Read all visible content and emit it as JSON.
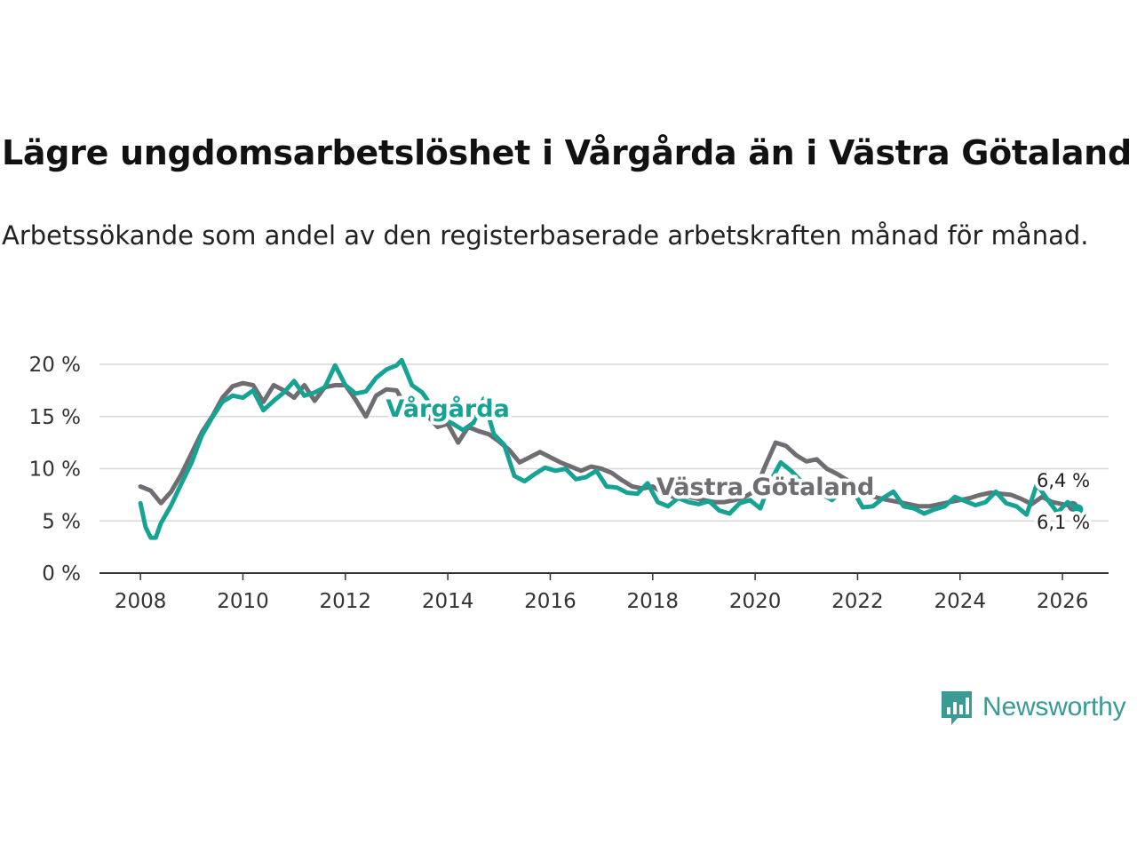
{
  "title": "Lägre ungdomsarbetslöshet i Vårgårda än i Västra Götaland",
  "subtitle": "Arbetssökande som andel av den registerbaserade arbetskraften månad för månad.",
  "brand": "Newsworthy",
  "colors": {
    "vargarda": "#16a394",
    "vastra_gotaland": "#6f6d72",
    "grid": "#d8d8d8",
    "axis": "#333333",
    "brand": "#3a9a94"
  },
  "chart_data": {
    "type": "line",
    "title": "Lägre ungdomsarbetslöshet i Vårgårda än i Västra Götaland",
    "xlabel": "",
    "ylabel": "",
    "xlim": [
      2007.2,
      2026.9
    ],
    "ylim": [
      0,
      20
    ],
    "yticks": [
      0,
      5,
      10,
      15,
      20
    ],
    "ytick_labels": [
      "0 %",
      "5 %",
      "10 %",
      "15 %",
      "20 %"
    ],
    "xticks": [
      2008,
      2010,
      2012,
      2014,
      2016,
      2018,
      2020,
      2022,
      2024,
      2026
    ],
    "xtick_labels": [
      "2008",
      "2010",
      "2012",
      "2014",
      "2016",
      "2018",
      "2020",
      "2022",
      "2024",
      "2026"
    ],
    "grid": true,
    "series": [
      {
        "name": "Västra Götaland",
        "label": "Västra Götaland",
        "end_label": "6,4 %",
        "color": "#6f6d72",
        "points": [
          [
            2008.0,
            8.3
          ],
          [
            2008.2,
            7.9
          ],
          [
            2008.4,
            6.7
          ],
          [
            2008.6,
            7.8
          ],
          [
            2008.8,
            9.5
          ],
          [
            2009.0,
            11.5
          ],
          [
            2009.2,
            13.5
          ],
          [
            2009.4,
            15.0
          ],
          [
            2009.6,
            16.8
          ],
          [
            2009.8,
            17.9
          ],
          [
            2010.0,
            18.2
          ],
          [
            2010.2,
            18.0
          ],
          [
            2010.4,
            16.4
          ],
          [
            2010.6,
            18.0
          ],
          [
            2010.8,
            17.5
          ],
          [
            2011.0,
            16.8
          ],
          [
            2011.2,
            18.0
          ],
          [
            2011.4,
            16.5
          ],
          [
            2011.6,
            17.8
          ],
          [
            2011.8,
            18.0
          ],
          [
            2012.0,
            18.0
          ],
          [
            2012.2,
            16.6
          ],
          [
            2012.4,
            15.0
          ],
          [
            2012.6,
            17.0
          ],
          [
            2012.8,
            17.6
          ],
          [
            2013.0,
            17.5
          ],
          [
            2013.2,
            15.8
          ],
          [
            2013.4,
            15.4
          ],
          [
            2013.6,
            15.1
          ],
          [
            2013.8,
            14.0
          ],
          [
            2014.0,
            14.3
          ],
          [
            2014.2,
            12.5
          ],
          [
            2014.4,
            14.0
          ],
          [
            2014.6,
            13.6
          ],
          [
            2014.8,
            13.3
          ],
          [
            2015.0,
            12.6
          ],
          [
            2015.2,
            11.8
          ],
          [
            2015.4,
            10.6
          ],
          [
            2015.6,
            11.1
          ],
          [
            2015.8,
            11.6
          ],
          [
            2016.0,
            11.1
          ],
          [
            2016.2,
            10.6
          ],
          [
            2016.4,
            10.2
          ],
          [
            2016.6,
            9.8
          ],
          [
            2016.8,
            10.2
          ],
          [
            2017.0,
            10.0
          ],
          [
            2017.2,
            9.6
          ],
          [
            2017.4,
            8.9
          ],
          [
            2017.6,
            8.3
          ],
          [
            2017.8,
            8.1
          ],
          [
            2018.0,
            8.3
          ],
          [
            2018.2,
            7.7
          ],
          [
            2018.4,
            7.3
          ],
          [
            2018.6,
            7.4
          ],
          [
            2018.8,
            7.2
          ],
          [
            2019.0,
            7.0
          ],
          [
            2019.2,
            6.8
          ],
          [
            2019.4,
            6.8
          ],
          [
            2019.6,
            7.0
          ],
          [
            2019.8,
            7.3
          ],
          [
            2020.0,
            7.9
          ],
          [
            2020.2,
            10.3
          ],
          [
            2020.4,
            12.5
          ],
          [
            2020.6,
            12.2
          ],
          [
            2020.8,
            11.3
          ],
          [
            2021.0,
            10.7
          ],
          [
            2021.2,
            10.9
          ],
          [
            2021.4,
            10.0
          ],
          [
            2021.6,
            9.5
          ],
          [
            2021.8,
            8.9
          ],
          [
            2022.0,
            8.3
          ],
          [
            2022.2,
            7.5
          ],
          [
            2022.4,
            7.2
          ],
          [
            2022.6,
            7.0
          ],
          [
            2022.8,
            6.8
          ],
          [
            2023.0,
            6.6
          ],
          [
            2023.2,
            6.4
          ],
          [
            2023.4,
            6.4
          ],
          [
            2023.6,
            6.6
          ],
          [
            2023.8,
            6.8
          ],
          [
            2024.0,
            7.0
          ],
          [
            2024.2,
            7.2
          ],
          [
            2024.4,
            7.5
          ],
          [
            2024.6,
            7.7
          ],
          [
            2024.8,
            7.6
          ],
          [
            2025.0,
            7.5
          ],
          [
            2025.2,
            7.1
          ],
          [
            2025.4,
            6.6
          ],
          [
            2025.6,
            7.3
          ],
          [
            2025.8,
            6.8
          ],
          [
            2026.0,
            6.6
          ],
          [
            2026.2,
            6.4
          ]
        ]
      },
      {
        "name": "Vårgårda",
        "label": "Vårgårda",
        "end_label": "6,1 %",
        "color": "#16a394",
        "points": [
          [
            2008.0,
            6.7
          ],
          [
            2008.1,
            4.4
          ],
          [
            2008.2,
            3.4
          ],
          [
            2008.3,
            3.4
          ],
          [
            2008.4,
            4.8
          ],
          [
            2008.6,
            6.5
          ],
          [
            2008.8,
            8.6
          ],
          [
            2009.0,
            10.6
          ],
          [
            2009.2,
            13.2
          ],
          [
            2009.4,
            14.9
          ],
          [
            2009.6,
            16.4
          ],
          [
            2009.8,
            17.0
          ],
          [
            2010.0,
            16.8
          ],
          [
            2010.2,
            17.5
          ],
          [
            2010.4,
            15.6
          ],
          [
            2010.6,
            16.5
          ],
          [
            2010.8,
            17.3
          ],
          [
            2011.0,
            18.4
          ],
          [
            2011.2,
            17.0
          ],
          [
            2011.4,
            17.3
          ],
          [
            2011.6,
            17.8
          ],
          [
            2011.8,
            19.9
          ],
          [
            2012.0,
            18.0
          ],
          [
            2012.2,
            17.2
          ],
          [
            2012.4,
            17.4
          ],
          [
            2012.6,
            18.7
          ],
          [
            2012.8,
            19.5
          ],
          [
            2013.0,
            19.9
          ],
          [
            2013.1,
            20.4
          ],
          [
            2013.3,
            18.0
          ],
          [
            2013.5,
            17.3
          ],
          [
            2013.7,
            15.9
          ],
          [
            2013.9,
            14.9
          ],
          [
            2014.1,
            14.3
          ],
          [
            2014.3,
            13.7
          ],
          [
            2014.5,
            14.4
          ],
          [
            2014.7,
            16.7
          ],
          [
            2014.9,
            13.3
          ],
          [
            2015.1,
            12.3
          ],
          [
            2015.3,
            9.3
          ],
          [
            2015.5,
            8.8
          ],
          [
            2015.7,
            9.5
          ],
          [
            2015.9,
            10.1
          ],
          [
            2016.1,
            9.8
          ],
          [
            2016.3,
            10.0
          ],
          [
            2016.5,
            9.0
          ],
          [
            2016.7,
            9.2
          ],
          [
            2016.9,
            9.8
          ],
          [
            2017.1,
            8.3
          ],
          [
            2017.3,
            8.2
          ],
          [
            2017.5,
            7.7
          ],
          [
            2017.7,
            7.6
          ],
          [
            2017.9,
            8.6
          ],
          [
            2018.1,
            6.8
          ],
          [
            2018.3,
            6.4
          ],
          [
            2018.5,
            7.2
          ],
          [
            2018.7,
            6.8
          ],
          [
            2018.9,
            6.6
          ],
          [
            2019.1,
            6.9
          ],
          [
            2019.3,
            6.0
          ],
          [
            2019.5,
            5.7
          ],
          [
            2019.7,
            6.7
          ],
          [
            2019.9,
            7.0
          ],
          [
            2020.1,
            6.2
          ],
          [
            2020.3,
            8.8
          ],
          [
            2020.5,
            10.6
          ],
          [
            2020.7,
            9.8
          ],
          [
            2020.9,
            8.8
          ],
          [
            2021.1,
            8.2
          ],
          [
            2021.3,
            7.6
          ],
          [
            2021.5,
            7.0
          ],
          [
            2021.7,
            7.9
          ],
          [
            2021.9,
            8.0
          ],
          [
            2022.1,
            6.3
          ],
          [
            2022.3,
            6.4
          ],
          [
            2022.5,
            7.2
          ],
          [
            2022.7,
            7.8
          ],
          [
            2022.9,
            6.4
          ],
          [
            2023.1,
            6.2
          ],
          [
            2023.3,
            5.7
          ],
          [
            2023.5,
            6.1
          ],
          [
            2023.7,
            6.4
          ],
          [
            2023.9,
            7.3
          ],
          [
            2024.1,
            6.9
          ],
          [
            2024.3,
            6.5
          ],
          [
            2024.5,
            6.8
          ],
          [
            2024.7,
            7.8
          ],
          [
            2024.9,
            6.7
          ],
          [
            2025.1,
            6.4
          ],
          [
            2025.3,
            5.6
          ],
          [
            2025.5,
            8.5
          ],
          [
            2025.7,
            7.1
          ],
          [
            2025.9,
            5.8
          ],
          [
            2026.1,
            6.8
          ],
          [
            2026.3,
            6.1
          ]
        ]
      }
    ]
  }
}
